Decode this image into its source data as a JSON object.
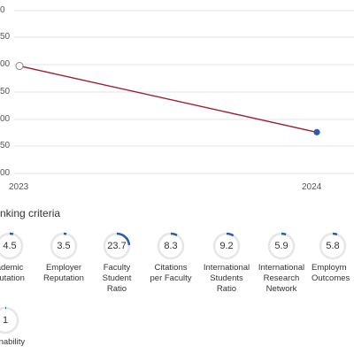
{
  "chart": {
    "y_ticks": [
      "0",
      "50",
      "00",
      "50",
      "00",
      "50",
      "00"
    ],
    "x_ticks": [
      "2023",
      "2024"
    ],
    "line_color": "#9e1b32",
    "point_color": "#2a5db0",
    "chart_data": {
      "type": "line",
      "x": [
        "2023",
        "2024"
      ],
      "series": [
        {
          "values": [
            201,
            262
          ]
        }
      ]
    }
  },
  "section": {
    "title": "nking criteria"
  },
  "criteria": [
    {
      "value": "4.5",
      "label": [
        "ademic",
        "putation"
      ],
      "fraction": 0.045
    },
    {
      "value": "3.5",
      "label": [
        "Employer",
        "Reputation"
      ],
      "fraction": 0.035
    },
    {
      "value": "23.7",
      "label": [
        "Faculty",
        "Student",
        "Ratio"
      ],
      "fraction": 0.237
    },
    {
      "value": "8.3",
      "label": [
        "Citations",
        "per Faculty"
      ],
      "fraction": 0.083
    },
    {
      "value": "9.2",
      "label": [
        "International",
        "Students",
        "Ratio"
      ],
      "fraction": 0.092
    },
    {
      "value": "5.9",
      "label": [
        "International",
        "Research",
        "Network"
      ],
      "fraction": 0.059
    },
    {
      "value": "5.8",
      "label": [
        "Employm",
        "Outcomes"
      ],
      "fraction": 0.058
    },
    {
      "value": "1",
      "label": [
        "stainability"
      ],
      "fraction": 0.01
    }
  ],
  "colors": {
    "ring_track": "#e6e6e6",
    "ring_fill": "#2a5db0"
  }
}
